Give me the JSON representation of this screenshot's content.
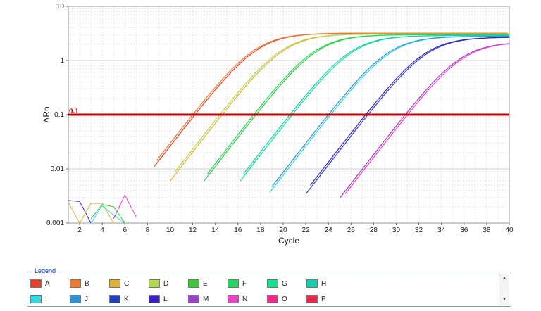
{
  "chart_data": {
    "type": "line",
    "xlabel": "Cycle",
    "ylabel": "ΔRn",
    "xlim": [
      1,
      40
    ],
    "ylim": [
      0.001,
      10
    ],
    "yscale": "log",
    "x_ticks": [
      2,
      4,
      6,
      8,
      10,
      12,
      14,
      16,
      18,
      20,
      22,
      24,
      26,
      28,
      30,
      32,
      34,
      36,
      38,
      40
    ],
    "y_tick_labels": [
      "10",
      "1",
      "0.1",
      "0.01",
      "0.001"
    ],
    "y_ticks": [
      10,
      1,
      0.1,
      0.01,
      0.001
    ],
    "grid": true,
    "threshold": {
      "value": 0.1,
      "label": "0.1",
      "color": "#c00000"
    },
    "series": [
      {
        "name": "A",
        "color": "#e8402c",
        "ct": 12.2,
        "plateau": 3.2,
        "start": 8.6
      },
      {
        "name": "B",
        "color": "#f07a2a",
        "ct": 12.0,
        "plateau": 3.2,
        "start": 8.8
      },
      {
        "name": "C",
        "color": "#e0b030",
        "ct": 14.6,
        "plateau": 3.1,
        "start": 10.0
      },
      {
        "name": "D",
        "color": "#b0d84a",
        "ct": 14.4,
        "plateau": 3.1,
        "start": 10.4
      },
      {
        "name": "E",
        "color": "#38c838",
        "ct": 17.6,
        "plateau": 3.0,
        "start": 13.0
      },
      {
        "name": "F",
        "color": "#20d860",
        "ct": 17.4,
        "plateau": 3.0,
        "start": 13.3
      },
      {
        "name": "G",
        "color": "#14e090",
        "ct": 20.8,
        "plateau": 2.9,
        "start": 16.2
      },
      {
        "name": "H",
        "color": "#10d0b0",
        "ct": 20.6,
        "plateau": 2.9,
        "start": 16.5
      },
      {
        "name": "I",
        "color": "#30d8e0",
        "ct": 24.2,
        "plateau": 2.8,
        "start": 18.8
      },
      {
        "name": "J",
        "color": "#2a90d8",
        "ct": 24.0,
        "plateau": 2.8,
        "start": 19.0
      },
      {
        "name": "K",
        "color": "#2040c0",
        "ct": 27.5,
        "plateau": 2.7,
        "start": 22.0
      },
      {
        "name": "L",
        "color": "#3a20c8",
        "ct": 27.3,
        "plateau": 2.7,
        "start": 22.4
      },
      {
        "name": "M",
        "color": "#9a40c8",
        "ct": 30.8,
        "plateau": 2.2,
        "start": 25.0
      },
      {
        "name": "N",
        "color": "#f040c8",
        "ct": 31.0,
        "plateau": 2.2,
        "start": 25.5
      },
      {
        "name": "O",
        "color": "#f02888",
        "ct": null
      },
      {
        "name": "P",
        "color": "#e82848",
        "ct": null
      }
    ]
  },
  "legend": {
    "title": "Legend",
    "row1": [
      {
        "name": "A",
        "color": "#e8402c"
      },
      {
        "name": "B",
        "color": "#f07a2a"
      },
      {
        "name": "C",
        "color": "#e0b030"
      },
      {
        "name": "D",
        "color": "#b0d84a"
      },
      {
        "name": "E",
        "color": "#38c838"
      },
      {
        "name": "F",
        "color": "#20d860"
      },
      {
        "name": "G",
        "color": "#14e090"
      },
      {
        "name": "H",
        "color": "#10d0b0"
      }
    ],
    "row2": [
      {
        "name": "I",
        "color": "#30d8e0"
      },
      {
        "name": "J",
        "color": "#2a90d8"
      },
      {
        "name": "K",
        "color": "#2040c0"
      },
      {
        "name": "L",
        "color": "#3a20c8"
      },
      {
        "name": "M",
        "color": "#9a40c8"
      },
      {
        "name": "N",
        "color": "#f040c8"
      },
      {
        "name": "O",
        "color": "#f02888"
      },
      {
        "name": "P",
        "color": "#e82848"
      }
    ],
    "scroll_up_icon": "triangle-up-icon",
    "scroll_down_icon": "triangle-down-icon"
  }
}
